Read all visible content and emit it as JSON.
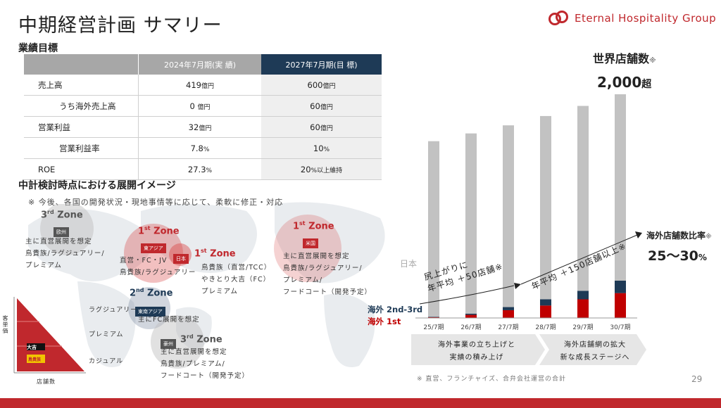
{
  "page_title": "中期経営計画 サマリー",
  "logo": {
    "name": "Eternal Hospitality Group"
  },
  "kpi": {
    "section_title": "業績目標",
    "columns": [
      "",
      "2024年7月期(実 績)",
      "2027年7月期(目 標)"
    ],
    "rows": [
      {
        "label": "売上高",
        "actual": "419",
        "actual_unit": "億円",
        "target": "600",
        "target_unit": "億円"
      },
      {
        "label": "うち海外売上高",
        "actual": "0",
        "actual_unit": "億円",
        "target": "60",
        "target_unit": "億円"
      },
      {
        "label": "営業利益",
        "actual": "32",
        "actual_unit": "億円",
        "target": "60",
        "target_unit": "億円"
      },
      {
        "label": "営業利益率",
        "actual": "7.8",
        "actual_unit": "%",
        "target": "10",
        "target_unit": "%"
      },
      {
        "label": "ROE",
        "actual": "27.3",
        "actual_unit": "%",
        "target": "20",
        "target_unit": "%以上維持"
      }
    ]
  },
  "map": {
    "section_title": "中計検討時点における展開イメージ",
    "note": "※ 今後、各国の開発状況・現地事情等に応じて、柔軟に修正・対応",
    "zones": {
      "europe": {
        "zone": "3",
        "suffix": "rd",
        "word": "Zone",
        "tag": "欧州",
        "desc": [
          "主に直営展開を想定",
          "鳥貴族/ラグジュアリー/",
          "プレミアム"
        ]
      },
      "east_asia": {
        "zone": "1",
        "suffix": "st",
        "word": "Zone",
        "tag": "東アジア",
        "desc": [
          "直営・FC・JV",
          "鳥貴族/ラグジュアリー"
        ]
      },
      "japan": {
        "zone": "1",
        "suffix": "st",
        "word": "Zone",
        "tag": "日本",
        "desc": [
          "鳥貴族（直営/TCC）",
          "やきとり大吉（FC）",
          "プレミアム"
        ]
      },
      "usa": {
        "zone": "1",
        "suffix": "st",
        "word": "Zone",
        "tag": "米国",
        "desc": [
          "主に直営展開を想定",
          "鳥貴族/ラグジュアリー/",
          "プレミアム/",
          "フードコート（開発予定）"
        ]
      },
      "se_asia": {
        "zone": "2",
        "suffix": "nd",
        "word": "Zone",
        "tag": "東南アジア",
        "desc": [
          "主にFC展開を想定"
        ]
      },
      "oceania": {
        "zone": "3",
        "suffix": "rd",
        "word": "Zone",
        "tag": "豪州",
        "desc": [
          "主に直営展開を想定",
          "鳥貴族/プレミアム/",
          "フードコート（開発予定）"
        ]
      }
    },
    "tiers": [
      "ラグジュアリー",
      "プレミアム",
      "カジュアル"
    ],
    "axis_y": "客単価",
    "axis_x": "店舗数",
    "brand_labels": [
      "大吉",
      "鳥貴族"
    ]
  },
  "chart": {
    "title": "世界店舗数",
    "title_mark": "※",
    "value": "2,000",
    "value_suffix": "超",
    "ratio_title": "海外店舗数比率",
    "ratio_mark": "※",
    "ratio_value": "25〜30",
    "ratio_unit": "%",
    "label_japan": "日本",
    "label_overseas_23": "海外 2nd-3rd",
    "label_overseas_1": "海外 1st",
    "annot1_line1": "尻上がりに",
    "annot1_line2": "年平均 ＋50店舗※",
    "annot2": "年平均 ＋150店舗以上※",
    "phase1_line1": "海外事業の立ち上げと",
    "phase1_line2": "実績の積み上げ",
    "phase2_line1": "海外店舗網の拡大",
    "phase2_line2": "新な成長ステージへ",
    "footnote": "※ 直営、フランチャイズ、合弁会社運営の合計",
    "colors": {
      "japan": "#c2c2c2",
      "overseas_23": "#1e3a56",
      "overseas_1": "#c00000"
    }
  },
  "chart_data": {
    "type": "bar",
    "categories": [
      "25/7期",
      "26/7期",
      "27/7期",
      "28/7期",
      "29/7期",
      "30/7期"
    ],
    "series": [
      {
        "name": "海外 1st",
        "values": [
          5,
          20,
          50,
          80,
          120,
          160
        ]
      },
      {
        "name": "海外 2nd-3rd",
        "values": [
          3,
          8,
          20,
          40,
          55,
          80
        ]
      },
      {
        "name": "日本",
        "values": [
          1130,
          1160,
          1170,
          1180,
          1190,
          1200
        ]
      }
    ]
  },
  "page_number": "29"
}
